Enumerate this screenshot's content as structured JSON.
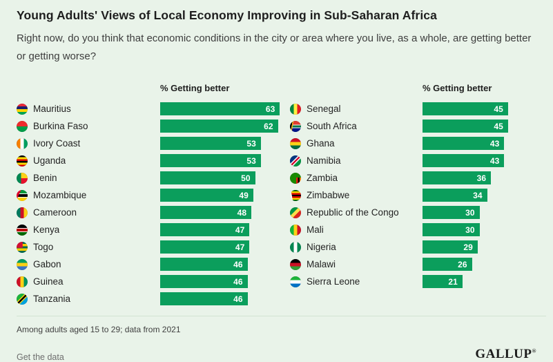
{
  "page": {
    "title": "Young Adults' Views of Local Economy Improving in Sub-Saharan Africa",
    "subtitle": "Right now, do you think that economic conditions in the city or area where you live, as a whole, are getting better or getting worse?",
    "footnote": "Among adults aged 15 to 29; data from 2021",
    "link_label": "Get the data",
    "brand": "GALLUP",
    "brand_mark": "®"
  },
  "colors": {
    "background": "#e9f3e9",
    "bar": "#0b9e5c",
    "value_text": "#ffffff"
  },
  "chart_data": {
    "type": "bar",
    "orientation": "horizontal",
    "title": "Young Adults' Views of Local Economy Improving in Sub-Saharan Africa",
    "value_axis_label": "% Getting better",
    "xlim": [
      0,
      63
    ],
    "grid": false,
    "columns": [
      {
        "header": "% Getting better",
        "rows": [
          {
            "country": "Mauritius",
            "value": 63
          },
          {
            "country": "Burkina Faso",
            "value": 62
          },
          {
            "country": "Ivory Coast",
            "value": 53
          },
          {
            "country": "Uganda",
            "value": 53
          },
          {
            "country": "Benin",
            "value": 50
          },
          {
            "country": "Mozambique",
            "value": 49
          },
          {
            "country": "Cameroon",
            "value": 48
          },
          {
            "country": "Kenya",
            "value": 47
          },
          {
            "country": "Togo",
            "value": 47
          },
          {
            "country": "Gabon",
            "value": 46
          },
          {
            "country": "Guinea",
            "value": 46
          },
          {
            "country": "Tanzania",
            "value": 46
          }
        ]
      },
      {
        "header": "% Getting better",
        "rows": [
          {
            "country": "Senegal",
            "value": 45
          },
          {
            "country": "South Africa",
            "value": 45
          },
          {
            "country": "Ghana",
            "value": 43
          },
          {
            "country": "Namibia",
            "value": 43
          },
          {
            "country": "Zambia",
            "value": 36
          },
          {
            "country": "Zimbabwe",
            "value": 34
          },
          {
            "country": "Republic of the Congo",
            "value": 30
          },
          {
            "country": "Mali",
            "value": 30
          },
          {
            "country": "Nigeria",
            "value": 29
          },
          {
            "country": "Malawi",
            "value": 26
          },
          {
            "country": "Sierra Leone",
            "value": 21
          }
        ]
      }
    ]
  }
}
